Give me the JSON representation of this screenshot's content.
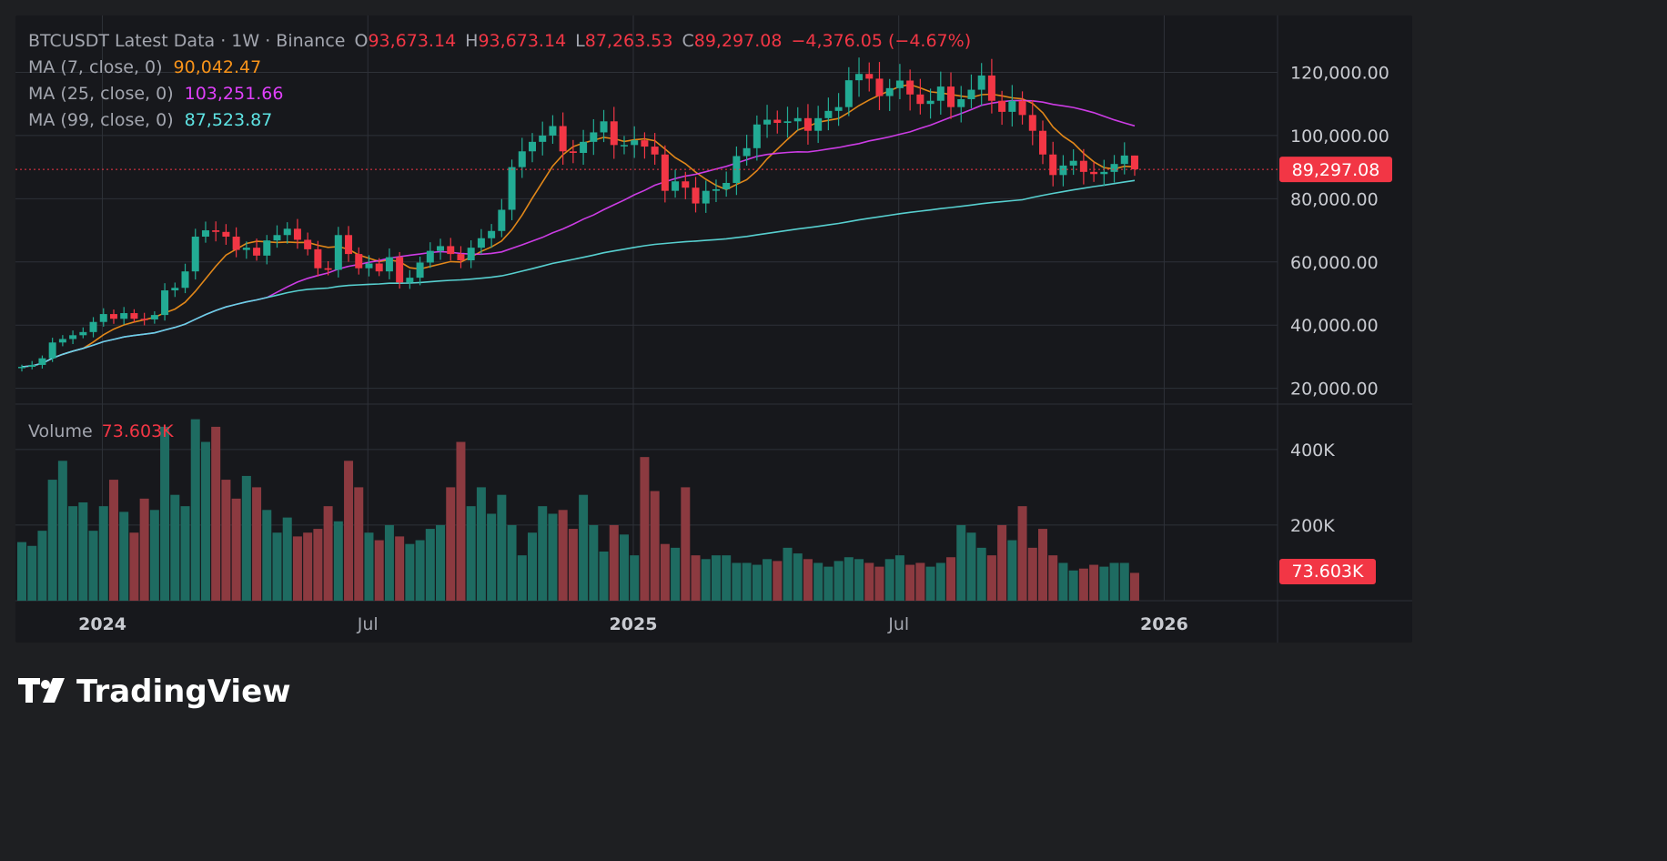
{
  "header": {
    "symbol": "BTCUSDT Latest Data",
    "sep1": " · ",
    "interval": "1W",
    "sep2": " · ",
    "exchange": "Binance",
    "o_label": "O",
    "o_value": "93,673.14",
    "h_label": "H",
    "h_value": "93,673.14",
    "l_label": "L",
    "l_value": "87,263.53",
    "c_label": "C",
    "c_value": "89,297.08",
    "change": "−4,376.05 (−4.67%)"
  },
  "indicators": [
    {
      "label": "MA (7, close, 0)",
      "value": "90,042.47",
      "color": "#f7931a"
    },
    {
      "label": "MA (25, close, 0)",
      "value": "103,251.66",
      "color": "#e040fb"
    },
    {
      "label": "MA (99, close, 0)",
      "value": "87,523.87",
      "color": "#5ee3e3"
    }
  ],
  "volume_legend": {
    "label": "Volume",
    "value": "73.603K"
  },
  "price_axis": {
    "ticks": [
      "120,000.00",
      "100,000.00",
      "80,000.00",
      "60,000.00",
      "40,000.00",
      "20,000.00"
    ],
    "tick_values": [
      120000,
      100000,
      80000,
      60000,
      40000,
      20000
    ],
    "range": [
      15000,
      138000
    ],
    "last_price_label": "89,297.08",
    "last_price": 89297.08
  },
  "volume_axis": {
    "ticks": [
      "400K",
      "200K"
    ],
    "tick_values": [
      400000,
      200000
    ],
    "range": [
      0,
      520000
    ],
    "last_volume_label": "73.603K"
  },
  "time_axis": {
    "labels": [
      "2024",
      "Jul",
      "2025",
      "Jul",
      "2026"
    ],
    "bold": [
      true,
      false,
      true,
      false,
      true
    ],
    "bar_index": [
      7,
      33,
      59,
      85,
      111
    ]
  },
  "brand": {
    "name": "TradingView"
  },
  "colors": {
    "background": "#1e1f22",
    "pane": "#17181c",
    "grid": "#2e3138",
    "up": "#22ab94",
    "down": "#f23645",
    "vol_up": "#1e6b61",
    "vol_down": "#8c3a40",
    "text": "#a3a6af",
    "tick_text": "#c9cbd1"
  },
  "chart_data": {
    "type": "candlestick",
    "symbol": "BTCUSDT",
    "interval": "1W",
    "start_date": "2023-10-16",
    "ohlc_anchors": [
      [
        0,
        26800
      ],
      [
        1,
        27400
      ],
      [
        2,
        29500
      ],
      [
        3,
        34500
      ],
      [
        4,
        35600
      ],
      [
        5,
        36800
      ],
      [
        6,
        37800
      ],
      [
        7,
        41000
      ],
      [
        8,
        43500
      ],
      [
        9,
        42000
      ],
      [
        10,
        43800
      ],
      [
        11,
        42000
      ],
      [
        12,
        41800
      ],
      [
        13,
        43200
      ],
      [
        14,
        51000
      ],
      [
        15,
        51800
      ],
      [
        16,
        57000
      ],
      [
        17,
        68000
      ],
      [
        18,
        70000
      ],
      [
        19,
        69500
      ],
      [
        20,
        68000
      ],
      [
        21,
        63800
      ],
      [
        22,
        64500
      ],
      [
        23,
        62000
      ],
      [
        24,
        66800
      ],
      [
        25,
        68500
      ],
      [
        26,
        70500
      ],
      [
        27,
        67000
      ],
      [
        28,
        64000
      ],
      [
        29,
        58000
      ],
      [
        30,
        57500
      ],
      [
        31,
        68500
      ],
      [
        32,
        62500
      ],
      [
        33,
        58000
      ],
      [
        34,
        59500
      ],
      [
        35,
        57000
      ],
      [
        36,
        61500
      ],
      [
        37,
        53500
      ],
      [
        38,
        55000
      ],
      [
        39,
        59800
      ],
      [
        40,
        63500
      ],
      [
        41,
        65000
      ],
      [
        42,
        62500
      ],
      [
        43,
        60500
      ],
      [
        44,
        64500
      ],
      [
        45,
        67500
      ],
      [
        46,
        69800
      ],
      [
        47,
        76500
      ],
      [
        48,
        90000
      ],
      [
        49,
        95000
      ],
      [
        50,
        98000
      ],
      [
        51,
        100000
      ],
      [
        52,
        103000
      ],
      [
        53,
        95000
      ],
      [
        54,
        94500
      ],
      [
        55,
        98000
      ],
      [
        56,
        101000
      ],
      [
        57,
        104500
      ],
      [
        58,
        97000
      ],
      [
        59,
        97000
      ],
      [
        60,
        98500
      ],
      [
        61,
        96500
      ],
      [
        62,
        94000
      ],
      [
        63,
        82500
      ],
      [
        64,
        85500
      ],
      [
        65,
        83500
      ],
      [
        66,
        78500
      ],
      [
        67,
        82500
      ],
      [
        68,
        83000
      ],
      [
        69,
        85000
      ],
      [
        70,
        93500
      ],
      [
        71,
        96000
      ],
      [
        72,
        103500
      ],
      [
        73,
        105000
      ],
      [
        74,
        104000
      ],
      [
        75,
        104500
      ],
      [
        76,
        105500
      ],
      [
        77,
        101500
      ],
      [
        78,
        105500
      ],
      [
        79,
        107800
      ],
      [
        80,
        109000
      ],
      [
        81,
        117500
      ],
      [
        82,
        119500
      ],
      [
        83,
        118000
      ],
      [
        84,
        112500
      ],
      [
        85,
        115000
      ],
      [
        86,
        117400
      ],
      [
        87,
        113000
      ],
      [
        88,
        110000
      ],
      [
        89,
        111000
      ],
      [
        90,
        115500
      ],
      [
        91,
        109000
      ],
      [
        92,
        111500
      ],
      [
        93,
        114500
      ],
      [
        94,
        119000
      ],
      [
        95,
        111000
      ],
      [
        96,
        107500
      ],
      [
        97,
        111000
      ],
      [
        98,
        106500
      ],
      [
        99,
        101500
      ],
      [
        100,
        94000
      ],
      [
        101,
        87500
      ],
      [
        102,
        90500
      ],
      [
        103,
        92000
      ],
      [
        104,
        88500
      ],
      [
        105,
        87800
      ],
      [
        106,
        88500
      ],
      [
        107,
        91000
      ],
      [
        108,
        93673.14
      ],
      [
        109,
        89297.08
      ]
    ],
    "last_bar": {
      "open": 93673.14,
      "high": 93673.14,
      "low": 87263.53,
      "close": 89297.08
    },
    "moving_averages": [
      {
        "name": "MA (7, close, 0)",
        "period": 7,
        "last": 90042.47
      },
      {
        "name": "MA (25, close, 0)",
        "period": 25,
        "last": 103251.66
      },
      {
        "name": "MA (99, close, 0)",
        "period": 99,
        "last": 87523.87
      }
    ],
    "volume_anchors": [
      [
        0,
        155000
      ],
      [
        1,
        145000
      ],
      [
        2,
        185000
      ],
      [
        3,
        320000
      ],
      [
        4,
        370000
      ],
      [
        5,
        250000
      ],
      [
        6,
        260000
      ],
      [
        7,
        185000
      ],
      [
        8,
        250000
      ],
      [
        9,
        320000
      ],
      [
        10,
        235000
      ],
      [
        11,
        180000
      ],
      [
        12,
        270000
      ],
      [
        13,
        240000
      ],
      [
        14,
        460000
      ],
      [
        15,
        280000
      ],
      [
        16,
        250000
      ],
      [
        17,
        480000
      ],
      [
        18,
        420000
      ],
      [
        19,
        460000
      ],
      [
        20,
        320000
      ],
      [
        21,
        270000
      ],
      [
        22,
        330000
      ],
      [
        23,
        300000
      ],
      [
        24,
        240000
      ],
      [
        25,
        180000
      ],
      [
        26,
        220000
      ],
      [
        27,
        170000
      ],
      [
        28,
        180000
      ],
      [
        29,
        190000
      ],
      [
        30,
        250000
      ],
      [
        31,
        210000
      ],
      [
        32,
        370000
      ],
      [
        33,
        300000
      ],
      [
        34,
        180000
      ],
      [
        35,
        160000
      ],
      [
        36,
        200000
      ],
      [
        37,
        170000
      ],
      [
        38,
        150000
      ],
      [
        39,
        160000
      ],
      [
        40,
        190000
      ],
      [
        41,
        200000
      ],
      [
        42,
        300000
      ],
      [
        43,
        420000
      ],
      [
        44,
        250000
      ],
      [
        45,
        300000
      ],
      [
        46,
        230000
      ],
      [
        47,
        280000
      ],
      [
        48,
        200000
      ],
      [
        49,
        120000
      ],
      [
        50,
        180000
      ],
      [
        51,
        250000
      ],
      [
        52,
        230000
      ],
      [
        53,
        240000
      ],
      [
        54,
        190000
      ],
      [
        55,
        280000
      ],
      [
        56,
        200000
      ],
      [
        57,
        130000
      ],
      [
        58,
        200000
      ],
      [
        59,
        175000
      ],
      [
        60,
        120000
      ],
      [
        61,
        380000
      ],
      [
        62,
        290000
      ],
      [
        63,
        150000
      ],
      [
        64,
        140000
      ],
      [
        65,
        300000
      ],
      [
        66,
        120000
      ],
      [
        67,
        110000
      ],
      [
        68,
        120000
      ],
      [
        69,
        120000
      ],
      [
        70,
        100000
      ],
      [
        71,
        100000
      ],
      [
        72,
        95000
      ],
      [
        73,
        110000
      ],
      [
        74,
        105000
      ],
      [
        75,
        140000
      ],
      [
        76,
        125000
      ],
      [
        77,
        110000
      ],
      [
        78,
        100000
      ],
      [
        79,
        90000
      ],
      [
        80,
        105000
      ],
      [
        81,
        115000
      ],
      [
        82,
        110000
      ],
      [
        83,
        100000
      ],
      [
        84,
        90000
      ],
      [
        85,
        110000
      ],
      [
        86,
        120000
      ],
      [
        87,
        95000
      ],
      [
        88,
        100000
      ],
      [
        89,
        90000
      ],
      [
        90,
        100000
      ],
      [
        91,
        115000
      ],
      [
        92,
        200000
      ],
      [
        93,
        180000
      ],
      [
        94,
        140000
      ],
      [
        95,
        120000
      ],
      [
        96,
        200000
      ],
      [
        97,
        160000
      ],
      [
        98,
        250000
      ],
      [
        99,
        140000
      ],
      [
        100,
        190000
      ],
      [
        101,
        120000
      ],
      [
        102,
        100000
      ],
      [
        103,
        80000
      ],
      [
        104,
        85000
      ],
      [
        105,
        95000
      ],
      [
        106,
        90000
      ],
      [
        107,
        100000
      ],
      [
        108,
        100000
      ],
      [
        109,
        73603
      ]
    ]
  }
}
